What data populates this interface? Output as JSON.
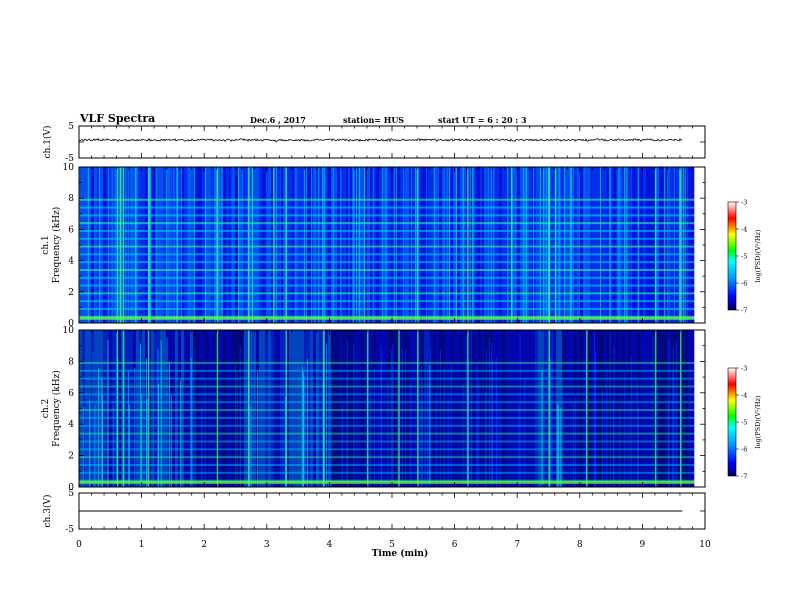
{
  "header": {
    "title": "VLF Spectra",
    "date": "Dec.6 , 2017",
    "station": "station= HUS",
    "start_ut": "start  UT =   6 : 20 : 3"
  },
  "chart_data": [
    {
      "type": "line",
      "panel": "ch1-waveform",
      "ylabel": "ch.1(V)",
      "yticks": [
        "5",
        "0",
        "-5"
      ],
      "ylim": [
        -5,
        5
      ],
      "xlim": [
        0,
        10
      ],
      "xlabel": "",
      "description_values": {
        "baseline": 0
      }
    },
    {
      "type": "heatmap",
      "panel": "ch1-spectrogram",
      "ylabel_line1": "ch.1",
      "ylabel_line2": "Frequency (kHz)",
      "yticks": [
        "0",
        "2",
        "4",
        "6",
        "8",
        "10"
      ],
      "ylim": [
        0,
        10
      ],
      "xlim": [
        0,
        9.83
      ],
      "colorbar": {
        "label": "log(PSD)(V²/Hz)",
        "ticks": [
          "-3",
          "-4",
          "-5",
          "-6",
          "-7"
        ],
        "range": [
          -7,
          -3
        ]
      },
      "bright_bands_khz": [
        0.4,
        0.9,
        1.4,
        1.9,
        2.4,
        2.9,
        3.4,
        3.9,
        4.4,
        4.9,
        5.4,
        5.9,
        6.4,
        6.9,
        7.4,
        7.9
      ],
      "bright_times_min": [
        0.6,
        0.65,
        0.7,
        1.1,
        2.2,
        2.7,
        3.1,
        3.3,
        5.4,
        6.2,
        6.9,
        7.5,
        7.6,
        9.2,
        9.6
      ]
    },
    {
      "type": "heatmap",
      "panel": "ch2-spectrogram",
      "ylabel_line1": "ch.2",
      "ylabel_line2": "Frequency (kHz)",
      "yticks": [
        "0",
        "2",
        "4",
        "6",
        "8",
        "10"
      ],
      "ylim": [
        0,
        10
      ],
      "xlim": [
        0,
        9.83
      ],
      "colorbar": {
        "label": "log(PSD)(V²/Hz)",
        "ticks": [
          "-3",
          "-4",
          "-5",
          "-6",
          "-7"
        ],
        "range": [
          -7,
          -3
        ]
      },
      "dark_intervals_min": [
        [
          1.8,
          2.6
        ],
        [
          4.0,
          5.5
        ],
        [
          5.6,
          7.2
        ],
        [
          7.7,
          9.8
        ]
      ],
      "bright_times_min": [
        0.6,
        0.7,
        1.1,
        2.2,
        2.7,
        3.3,
        3.9,
        4.6,
        5.1,
        5.4,
        6.2,
        7.5,
        8.1,
        9.2,
        9.6
      ]
    },
    {
      "type": "line",
      "panel": "ch3-waveform",
      "ylabel": "ch.3(V)",
      "yticks": [
        "5",
        "0",
        "-5"
      ],
      "ylim": [
        -5,
        5
      ],
      "xlim": [
        0,
        10
      ],
      "xlabel": "Time  (min)",
      "xticks": [
        "0",
        "1",
        "2",
        "3",
        "4",
        "5",
        "6",
        "7",
        "8",
        "9",
        "10"
      ],
      "description_values": {
        "baseline": 0
      }
    }
  ]
}
